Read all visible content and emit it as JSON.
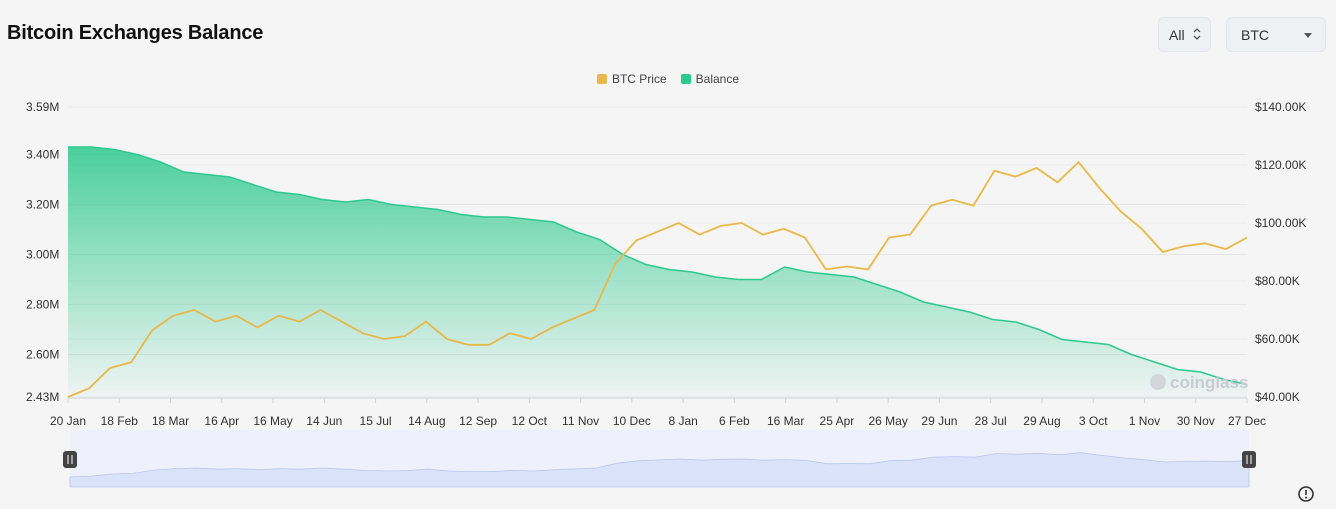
{
  "header": {
    "title": "Bitcoin Exchanges Balance",
    "range_label": "All",
    "coin_label": "BTC"
  },
  "colors": {
    "price": "#e8b84a",
    "balance": "#2ec98e",
    "navigator": "#dbe3fb"
  },
  "watermark": "coinglass",
  "icons": {
    "range_toggle": "updown-icon",
    "coin_dropdown": "chevron-down-icon",
    "settings": "settings-icon"
  },
  "chart_data": {
    "type": "area",
    "legend": [
      "BTC Price",
      "Balance"
    ],
    "legend_position": "top-center",
    "grid": true,
    "x_tick_labels": [
      "20 Jan",
      "18 Feb",
      "18 Mar",
      "16 Apr",
      "16 May",
      "14 Jun",
      "15 Jul",
      "14 Aug",
      "12 Sep",
      "12 Oct",
      "11 Nov",
      "10 Dec",
      "8 Jan",
      "6 Feb",
      "16 Mar",
      "25 Apr",
      "26 May",
      "29 Jun",
      "28 Jul",
      "29 Aug",
      "3 Oct",
      "1 Nov",
      "30 Nov",
      "27 Dec"
    ],
    "y_left_ticks": [
      "3.59M",
      "3.40M",
      "3.20M",
      "3.00M",
      "2.80M",
      "2.60M",
      "2.43M"
    ],
    "y_left_tick_values": [
      3590000,
      3400000,
      3200000,
      3000000,
      2800000,
      2600000,
      2430000
    ],
    "y_left_range": [
      2430000,
      3590000
    ],
    "y_right_ticks": [
      "$140.00K",
      "$120.00K",
      "$100.00K",
      "$80.00K",
      "$60.00K",
      "$40.00K"
    ],
    "y_right_tick_values": [
      140000,
      120000,
      100000,
      80000,
      60000,
      40000
    ],
    "y_right_range": [
      40000,
      140000
    ],
    "series": [
      {
        "name": "Balance",
        "axis": "left",
        "type": "area",
        "values": [
          3430000,
          3430000,
          3420000,
          3400000,
          3370000,
          3330000,
          3320000,
          3310000,
          3280000,
          3250000,
          3240000,
          3220000,
          3210000,
          3220000,
          3200000,
          3190000,
          3180000,
          3160000,
          3150000,
          3150000,
          3140000,
          3130000,
          3090000,
          3060000,
          3000000,
          2960000,
          2940000,
          2930000,
          2910000,
          2900000,
          2900000,
          2950000,
          2930000,
          2920000,
          2910000,
          2880000,
          2850000,
          2810000,
          2790000,
          2770000,
          2740000,
          2730000,
          2700000,
          2660000,
          2650000,
          2640000,
          2600000,
          2570000,
          2540000,
          2530000,
          2500000,
          2480000
        ]
      },
      {
        "name": "BTC Price",
        "axis": "right",
        "type": "line",
        "values": [
          40000,
          43000,
          50000,
          52000,
          63000,
          68000,
          70000,
          66000,
          68000,
          64000,
          68000,
          66000,
          70000,
          66000,
          62000,
          60000,
          61000,
          66000,
          60000,
          58000,
          58000,
          62000,
          60000,
          64000,
          67000,
          70000,
          86000,
          94000,
          97000,
          100000,
          96000,
          99000,
          100000,
          96000,
          98000,
          95000,
          84000,
          85000,
          84000,
          95000,
          96000,
          106000,
          108000,
          106000,
          118000,
          116000,
          119000,
          114000,
          121000,
          112000,
          104000,
          98000,
          90000,
          92000,
          93000,
          91000,
          95000
        ]
      }
    ]
  }
}
